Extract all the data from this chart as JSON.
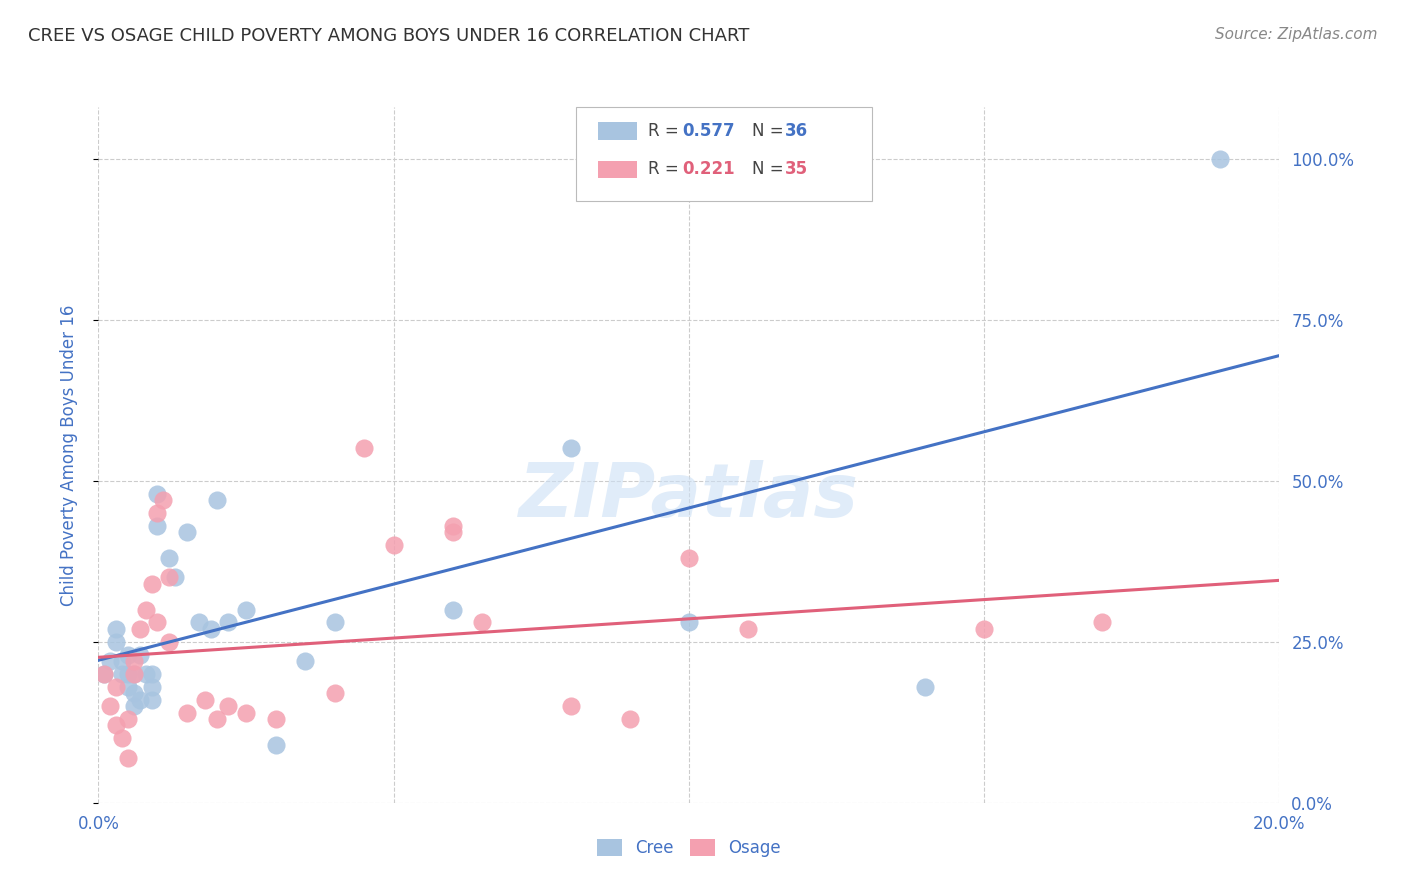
{
  "title": "CREE VS OSAGE CHILD POVERTY AMONG BOYS UNDER 16 CORRELATION CHART",
  "source": "Source: ZipAtlas.com",
  "ylabel": "Child Poverty Among Boys Under 16",
  "cree_R": 0.577,
  "cree_N": 36,
  "osage_R": 0.221,
  "osage_N": 35,
  "cree_color": "#a8c4e0",
  "osage_color": "#f4a0b0",
  "cree_line_color": "#4472c4",
  "osage_line_color": "#e0607a",
  "xlim": [
    0.0,
    0.2
  ],
  "ylim": [
    0.0,
    1.08
  ],
  "yticks": [
    0.0,
    0.25,
    0.5,
    0.75,
    1.0
  ],
  "ytick_labels": [
    "0.0%",
    "25.0%",
    "50.0%",
    "75.0%",
    "100.0%"
  ],
  "xticks": [
    0.0,
    0.05,
    0.1,
    0.15,
    0.2
  ],
  "xtick_labels": [
    "0.0%",
    "",
    "",
    "",
    "20.0%"
  ],
  "cree_x": [
    0.001,
    0.002,
    0.003,
    0.003,
    0.004,
    0.004,
    0.005,
    0.005,
    0.005,
    0.006,
    0.006,
    0.006,
    0.007,
    0.007,
    0.008,
    0.009,
    0.009,
    0.009,
    0.01,
    0.01,
    0.012,
    0.013,
    0.015,
    0.017,
    0.019,
    0.02,
    0.022,
    0.025,
    0.03,
    0.035,
    0.04,
    0.06,
    0.08,
    0.1,
    0.14,
    0.19
  ],
  "cree_y": [
    0.2,
    0.22,
    0.25,
    0.27,
    0.2,
    0.22,
    0.18,
    0.2,
    0.23,
    0.15,
    0.17,
    0.2,
    0.16,
    0.23,
    0.2,
    0.16,
    0.18,
    0.2,
    0.43,
    0.48,
    0.38,
    0.35,
    0.42,
    0.28,
    0.27,
    0.47,
    0.28,
    0.3,
    0.09,
    0.22,
    0.28,
    0.3,
    0.55,
    0.28,
    0.18,
    1.0
  ],
  "osage_x": [
    0.001,
    0.002,
    0.003,
    0.003,
    0.004,
    0.005,
    0.005,
    0.006,
    0.006,
    0.007,
    0.008,
    0.009,
    0.01,
    0.01,
    0.011,
    0.012,
    0.012,
    0.015,
    0.018,
    0.02,
    0.022,
    0.025,
    0.03,
    0.04,
    0.045,
    0.05,
    0.06,
    0.06,
    0.065,
    0.08,
    0.09,
    0.1,
    0.11,
    0.15,
    0.17
  ],
  "osage_y": [
    0.2,
    0.15,
    0.12,
    0.18,
    0.1,
    0.07,
    0.13,
    0.2,
    0.22,
    0.27,
    0.3,
    0.34,
    0.28,
    0.45,
    0.47,
    0.35,
    0.25,
    0.14,
    0.16,
    0.13,
    0.15,
    0.14,
    0.13,
    0.17,
    0.55,
    0.4,
    0.42,
    0.43,
    0.28,
    0.15,
    0.13,
    0.38,
    0.27,
    0.27,
    0.28
  ],
  "background_color": "#ffffff",
  "grid_color": "#cccccc",
  "title_color": "#333333",
  "axis_label_color": "#4472c4",
  "tick_color": "#4472c4"
}
